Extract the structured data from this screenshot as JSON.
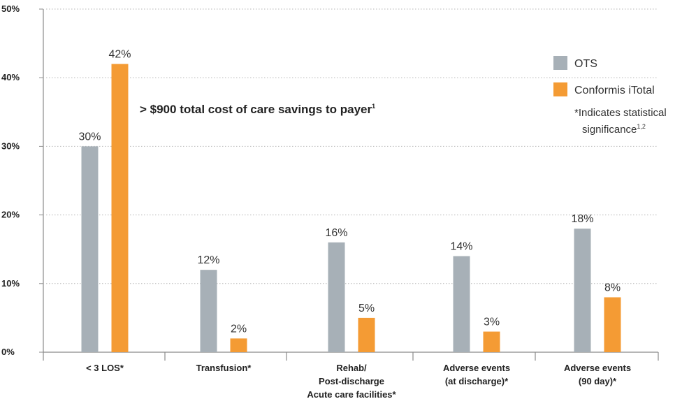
{
  "chart_data": {
    "type": "bar",
    "categories": [
      [
        "< 3 LOS*"
      ],
      [
        "Transfusion*"
      ],
      [
        "Rehab/",
        "Post-discharge",
        "Acute care facilities*"
      ],
      [
        "Adverse events",
        "(at discharge)*"
      ],
      [
        "Adverse events",
        "(90 day)*"
      ]
    ],
    "series": [
      {
        "name": "OTS",
        "color": "#a7b0b7",
        "values": [
          30,
          12,
          16,
          14,
          18
        ],
        "labels": [
          "30%",
          "12%",
          "16%",
          "14%",
          "18%"
        ]
      },
      {
        "name": "Conformis iTotal",
        "color": "#f49b34",
        "values": [
          42,
          2,
          5,
          3,
          8
        ],
        "labels": [
          "42%",
          "2%",
          "5%",
          "3%",
          "8%"
        ]
      }
    ],
    "ylim": [
      0,
      50
    ],
    "yticks": [
      0,
      10,
      20,
      30,
      40,
      50
    ],
    "ytick_labels": [
      "0%",
      "10%",
      "20%",
      "30%",
      "40%",
      "50%"
    ],
    "grid": "horizontal dotted",
    "legend_position": "right",
    "annotation": {
      "text": "> $900 total cost of care savings to payer",
      "sup": "1"
    },
    "note": {
      "lines": [
        "*Indicates statistical",
        "significance"
      ],
      "sup": "1,2"
    }
  }
}
